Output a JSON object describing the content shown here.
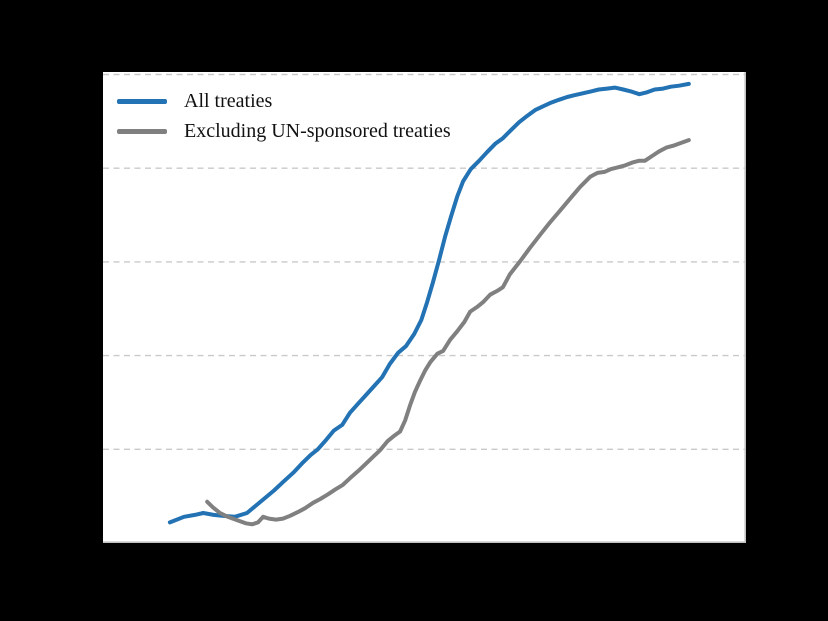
{
  "figure": {
    "background_color": "#000000",
    "plot_background_color": "#ffffff",
    "spine_color": "#c2c2c2"
  },
  "legend": {
    "position": "upper-left",
    "entries": [
      "All treaties",
      "Excluding UN-sponsored treaties"
    ]
  },
  "chart_data": {
    "type": "line",
    "title": "",
    "xlabel": "",
    "ylabel": "",
    "axis_tick_labels_visible": false,
    "x_unit": "fraction of plot width (tick labels not visible in image)",
    "y_unit": "gridline units: 0 = bottom axis, 1 per dashed gridline (tick labels not visible in image)",
    "xlim": [
      0,
      1
    ],
    "ylim": [
      0,
      5.03
    ],
    "gridlines_y": [
      1,
      2,
      3,
      4,
      5
    ],
    "grid_style": "dashed",
    "grid_color": "#c9c9c9",
    "legend_position": "upper-left",
    "series": [
      {
        "name": "All treaties",
        "color": "#2272b4",
        "points": [
          [
            0.104,
            0.22
          ],
          [
            0.126,
            0.28
          ],
          [
            0.143,
            0.3
          ],
          [
            0.156,
            0.32
          ],
          [
            0.172,
            0.3
          ],
          [
            0.185,
            0.29
          ],
          [
            0.205,
            0.28
          ],
          [
            0.224,
            0.32
          ],
          [
            0.238,
            0.4
          ],
          [
            0.252,
            0.48
          ],
          [
            0.266,
            0.56
          ],
          [
            0.28,
            0.65
          ],
          [
            0.296,
            0.75
          ],
          [
            0.311,
            0.86
          ],
          [
            0.323,
            0.94
          ],
          [
            0.334,
            1.0
          ],
          [
            0.347,
            1.1
          ],
          [
            0.359,
            1.2
          ],
          [
            0.372,
            1.26
          ],
          [
            0.384,
            1.39
          ],
          [
            0.397,
            1.49
          ],
          [
            0.409,
            1.58
          ],
          [
            0.421,
            1.67
          ],
          [
            0.434,
            1.77
          ],
          [
            0.446,
            1.91
          ],
          [
            0.459,
            2.03
          ],
          [
            0.471,
            2.1
          ],
          [
            0.484,
            2.23
          ],
          [
            0.495,
            2.38
          ],
          [
            0.504,
            2.57
          ],
          [
            0.513,
            2.78
          ],
          [
            0.523,
            3.03
          ],
          [
            0.532,
            3.27
          ],
          [
            0.541,
            3.48
          ],
          [
            0.551,
            3.7
          ],
          [
            0.56,
            3.86
          ],
          [
            0.572,
            3.99
          ],
          [
            0.585,
            4.08
          ],
          [
            0.597,
            4.17
          ],
          [
            0.61,
            4.26
          ],
          [
            0.622,
            4.32
          ],
          [
            0.635,
            4.41
          ],
          [
            0.647,
            4.49
          ],
          [
            0.66,
            4.56
          ],
          [
            0.672,
            4.62
          ],
          [
            0.684,
            4.66
          ],
          [
            0.697,
            4.7
          ],
          [
            0.709,
            4.73
          ],
          [
            0.722,
            4.76
          ],
          [
            0.734,
            4.78
          ],
          [
            0.747,
            4.8
          ],
          [
            0.759,
            4.82
          ],
          [
            0.771,
            4.84
          ],
          [
            0.784,
            4.85
          ],
          [
            0.796,
            4.86
          ],
          [
            0.809,
            4.84
          ],
          [
            0.821,
            4.82
          ],
          [
            0.834,
            4.79
          ],
          [
            0.846,
            4.81
          ],
          [
            0.858,
            4.84
          ],
          [
            0.871,
            4.85
          ],
          [
            0.883,
            4.87
          ],
          [
            0.896,
            4.88
          ],
          [
            0.911,
            4.9
          ]
        ]
      },
      {
        "name": "Excluding UN-sponsored treaties",
        "color": "#808080",
        "points": [
          [
            0.162,
            0.44
          ],
          [
            0.171,
            0.38
          ],
          [
            0.182,
            0.32
          ],
          [
            0.194,
            0.28
          ],
          [
            0.21,
            0.24
          ],
          [
            0.222,
            0.21
          ],
          [
            0.232,
            0.2
          ],
          [
            0.241,
            0.22
          ],
          [
            0.249,
            0.28
          ],
          [
            0.258,
            0.26
          ],
          [
            0.269,
            0.25
          ],
          [
            0.28,
            0.26
          ],
          [
            0.291,
            0.29
          ],
          [
            0.303,
            0.33
          ],
          [
            0.314,
            0.37
          ],
          [
            0.327,
            0.43
          ],
          [
            0.338,
            0.47
          ],
          [
            0.35,
            0.52
          ],
          [
            0.361,
            0.57
          ],
          [
            0.373,
            0.62
          ],
          [
            0.384,
            0.69
          ],
          [
            0.397,
            0.77
          ],
          [
            0.408,
            0.84
          ],
          [
            0.42,
            0.92
          ],
          [
            0.431,
            0.99
          ],
          [
            0.443,
            1.09
          ],
          [
            0.454,
            1.15
          ],
          [
            0.462,
            1.19
          ],
          [
            0.47,
            1.31
          ],
          [
            0.478,
            1.48
          ],
          [
            0.485,
            1.61
          ],
          [
            0.493,
            1.73
          ],
          [
            0.501,
            1.84
          ],
          [
            0.509,
            1.93
          ],
          [
            0.52,
            2.02
          ],
          [
            0.529,
            2.05
          ],
          [
            0.54,
            2.17
          ],
          [
            0.551,
            2.26
          ],
          [
            0.562,
            2.36
          ],
          [
            0.571,
            2.47
          ],
          [
            0.582,
            2.52
          ],
          [
            0.591,
            2.57
          ],
          [
            0.602,
            2.65
          ],
          [
            0.613,
            2.69
          ],
          [
            0.622,
            2.73
          ],
          [
            0.633,
            2.87
          ],
          [
            0.649,
            3.01
          ],
          [
            0.664,
            3.15
          ],
          [
            0.68,
            3.29
          ],
          [
            0.695,
            3.42
          ],
          [
            0.711,
            3.55
          ],
          [
            0.727,
            3.68
          ],
          [
            0.742,
            3.8
          ],
          [
            0.758,
            3.91
          ],
          [
            0.769,
            3.95
          ],
          [
            0.78,
            3.96
          ],
          [
            0.79,
            3.99
          ],
          [
            0.801,
            4.01
          ],
          [
            0.812,
            4.03
          ],
          [
            0.823,
            4.06
          ],
          [
            0.834,
            4.08
          ],
          [
            0.843,
            4.08
          ],
          [
            0.854,
            4.13
          ],
          [
            0.865,
            4.18
          ],
          [
            0.876,
            4.22
          ],
          [
            0.887,
            4.24
          ],
          [
            0.899,
            4.27
          ],
          [
            0.911,
            4.3
          ]
        ]
      }
    ]
  }
}
